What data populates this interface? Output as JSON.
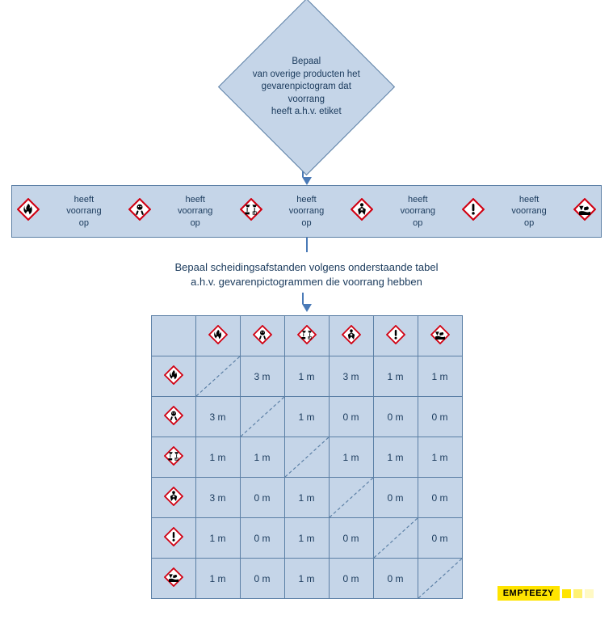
{
  "colors": {
    "panel_bg": "#c5d5e8",
    "panel_border": "#5b7fa5",
    "arrow": "#4a7ab7",
    "text": "#1a3a5c",
    "icon_border": "#d00012",
    "icon_fill": "#ffffff",
    "icon_symbol": "#000000",
    "brand_bg": "#ffe400",
    "brand_sq1": "#ffe400",
    "brand_sq2": "#fff173",
    "brand_sq3": "#fff9c4"
  },
  "diamond": {
    "line1": "Bepaal",
    "line2": "van overige producten het",
    "line3": "gevarenpictogram dat voorrang",
    "line4": "heeft a.h.v. etiket"
  },
  "precedence_label": "heeft voorrang op",
  "icons_order": [
    "flammable",
    "toxic",
    "corrosive",
    "health",
    "exclamation",
    "environment"
  ],
  "instruction": {
    "line1": "Bepaal scheidingsafstanden volgens onderstaande tabel",
    "line2": "a.h.v. gevarenpictogrammen die voorrang hebben"
  },
  "matrix": {
    "headers": [
      "flammable",
      "toxic",
      "corrosive",
      "health",
      "exclamation",
      "environment"
    ],
    "rows": [
      {
        "icon": "flammable",
        "cells": [
          null,
          "3 m",
          "1 m",
          "3 m",
          "1 m",
          "1 m"
        ]
      },
      {
        "icon": "toxic",
        "cells": [
          "3 m",
          null,
          "1 m",
          "0 m",
          "0 m",
          "0 m"
        ]
      },
      {
        "icon": "corrosive",
        "cells": [
          "1 m",
          "1 m",
          null,
          "1 m",
          "1 m",
          "1 m"
        ]
      },
      {
        "icon": "health",
        "cells": [
          "3 m",
          "0 m",
          "1 m",
          null,
          "0 m",
          "0 m"
        ]
      },
      {
        "icon": "exclamation",
        "cells": [
          "1 m",
          "0 m",
          "1 m",
          "0 m",
          null,
          "0 m"
        ]
      },
      {
        "icon": "environment",
        "cells": [
          "1 m",
          "0 m",
          "1 m",
          "0 m",
          "0 m",
          null
        ]
      }
    ]
  },
  "brand": "EMPTEEZY",
  "icon_size_row": 28,
  "icon_size_table": 24
}
